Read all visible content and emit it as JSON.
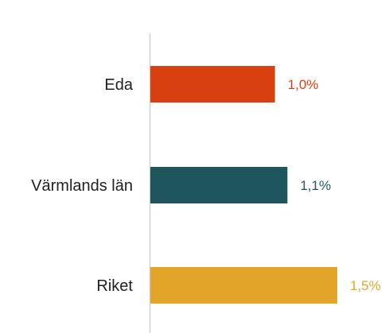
{
  "chart_data": {
    "type": "bar",
    "orientation": "horizontal",
    "categories": [
      "Eda",
      "Värmlands län",
      "Riket"
    ],
    "values": [
      1.0,
      1.1,
      1.5
    ],
    "value_labels": [
      "1,0%",
      "1,1%",
      "1,5%"
    ],
    "colors": [
      "#d9400f",
      "#1f565e",
      "#e2a529"
    ],
    "xlim": [
      0,
      1.8
    ],
    "grid": false,
    "legend": "none",
    "axis_color": "#d0d0d0"
  }
}
